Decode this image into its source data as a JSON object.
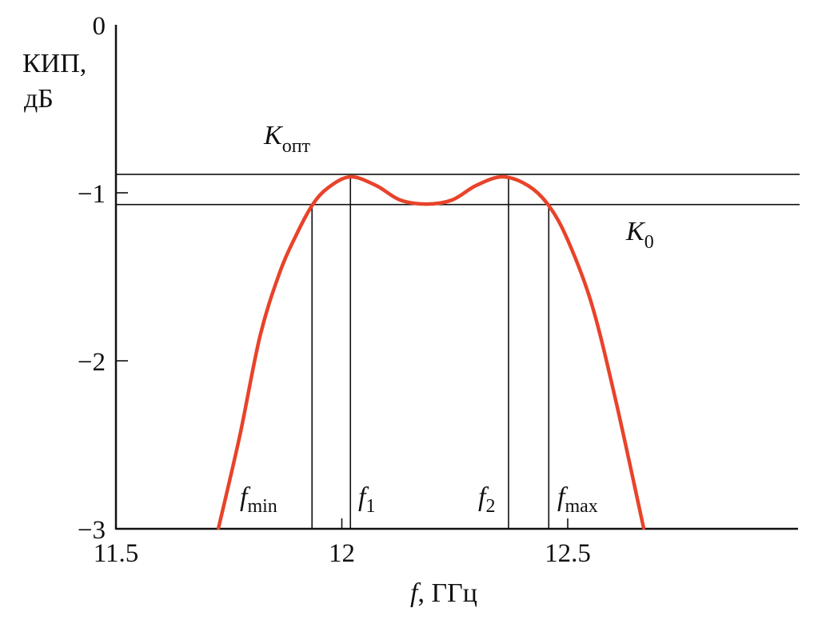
{
  "chart_data": {
    "type": "line",
    "title": "",
    "xlabel_var": "f",
    "xlabel_unit": ", ГГц",
    "ylabel_line1": "КИП,",
    "ylabel_line2": "дБ",
    "xlim": [
      11.5,
      13.0
    ],
    "ylim": [
      -3,
      0
    ],
    "x_ticks": [
      11.5,
      12,
      12.5
    ],
    "x_tick_labels": [
      "11.5",
      "12",
      "12.5"
    ],
    "y_ticks": [
      0,
      -1,
      -2,
      -3
    ],
    "y_tick_labels": [
      "0",
      "−1",
      "−2",
      "−3"
    ],
    "grid": false,
    "series": [
      {
        "color": "#e8432a",
        "x": [
          11.727,
          11.774,
          11.819,
          11.863,
          11.898,
          11.934,
          11.969,
          12.019,
          12.076,
          12.129,
          12.187,
          12.244,
          12.297,
          12.355,
          12.412,
          12.458,
          12.5,
          12.553,
          12.606,
          12.668
        ],
        "y": [
          -2.995,
          -2.448,
          -1.852,
          -1.471,
          -1.257,
          -1.076,
          -0.971,
          -0.905,
          -0.957,
          -1.043,
          -1.067,
          -1.043,
          -0.957,
          -0.905,
          -0.957,
          -1.076,
          -1.281,
          -1.662,
          -2.233,
          -2.995
        ]
      }
    ],
    "reference_lines": [
      {
        "label_main": "K",
        "label_sub": "опт",
        "value": -0.89
      },
      {
        "label_main": "K",
        "label_sub": "0",
        "value": -1.07
      }
    ],
    "markers": [
      {
        "label_main": "f",
        "label_sub": "min",
        "x": 11.934
      },
      {
        "label_main": "f",
        "label_sub": "1",
        "x": 12.019
      },
      {
        "label_main": "f",
        "label_sub": "2",
        "x": 12.369
      },
      {
        "label_main": "f",
        "label_sub": "max",
        "x": 12.458
      }
    ]
  }
}
